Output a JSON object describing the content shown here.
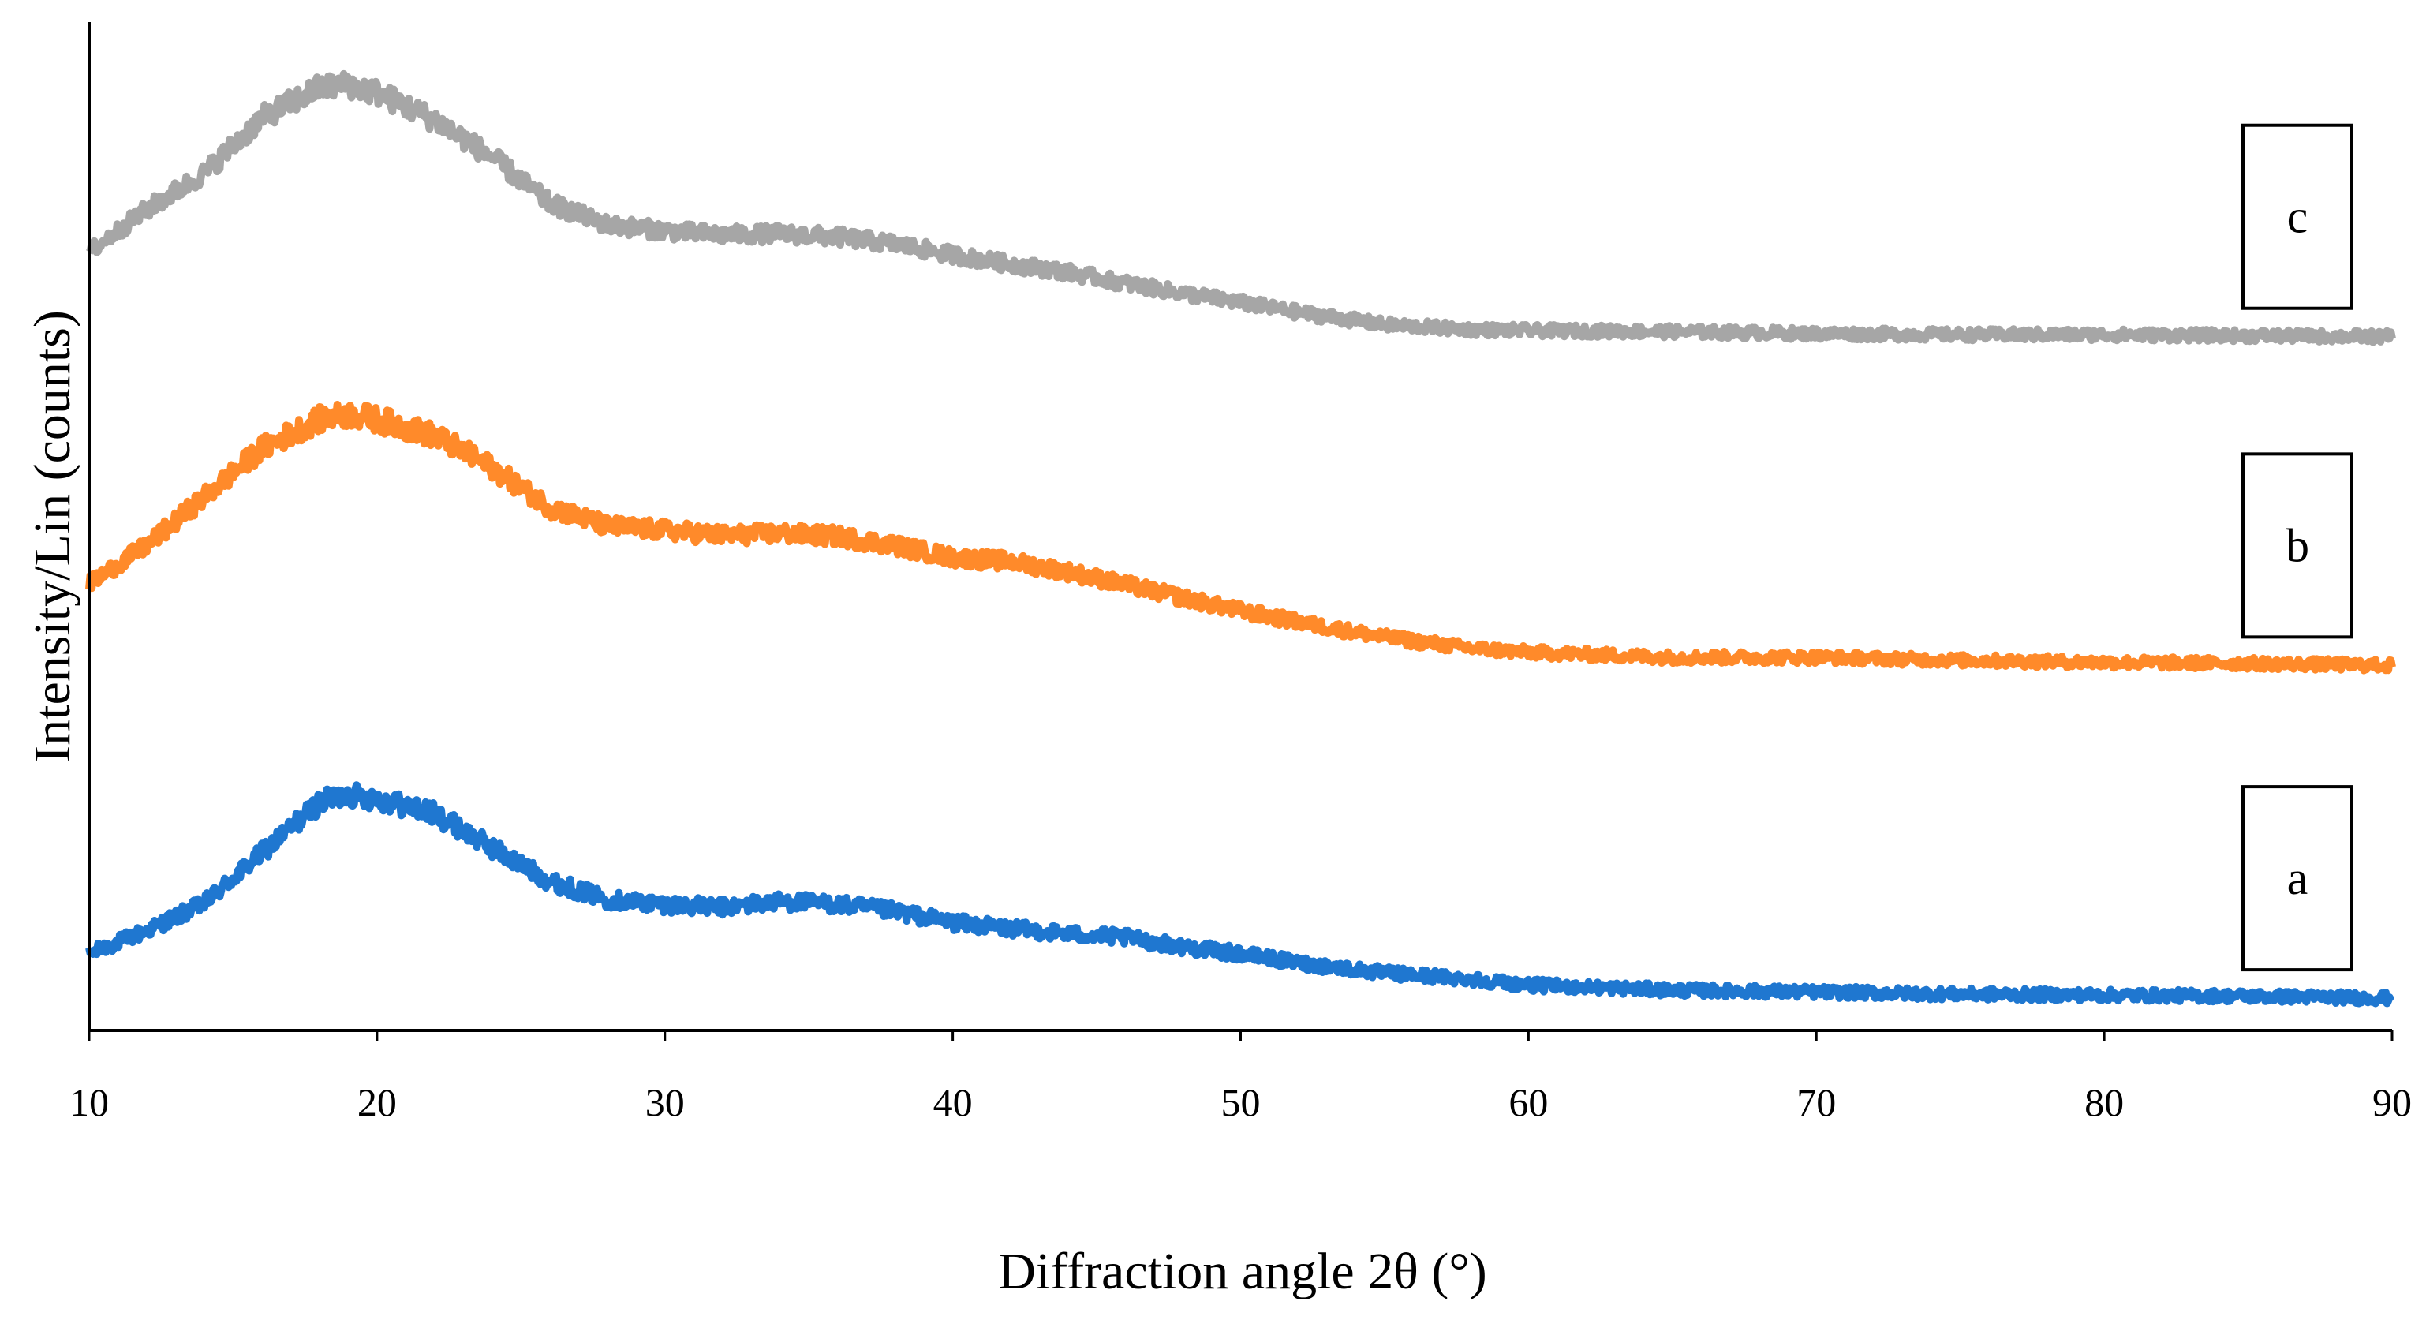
{
  "chart_data": {
    "type": "line",
    "title": "",
    "xlabel": "Diffraction angle 2θ (°)",
    "ylabel": "Intensity/Lin (counts)",
    "xlim": [
      10,
      90
    ],
    "xticks": [
      "10",
      "20",
      "30",
      "40",
      "50",
      "60",
      "70",
      "80",
      "90"
    ],
    "y_units": "arbitrary, traces vertically offset",
    "ylim": [
      0,
      100
    ],
    "grid": false,
    "series": [
      {
        "name": "a",
        "color": "#1f77d0",
        "x": [
          10,
          12,
          14,
          16,
          18,
          19,
          20,
          22,
          24,
          26,
          28,
          30,
          32,
          34,
          36,
          38,
          40,
          42,
          44,
          46,
          48,
          50,
          52,
          55,
          58,
          60,
          65,
          70,
          75,
          80,
          85,
          90
        ],
        "y": [
          7.6,
          9.9,
          12.6,
          17.6,
          22.6,
          23.4,
          23.0,
          21.5,
          18.1,
          14.8,
          13.0,
          12.5,
          12.2,
          12.8,
          12.5,
          11.8,
          10.7,
          10.1,
          9.6,
          9.2,
          8.3,
          7.6,
          6.7,
          5.7,
          5.1,
          4.5,
          4.0,
          3.8,
          3.6,
          3.5,
          3.4,
          3.2
        ]
      },
      {
        "name": "b",
        "color": "#ff8a2a",
        "x": [
          10,
          12,
          14,
          16,
          18,
          19,
          20,
          22,
          24,
          26,
          28,
          30,
          32,
          34,
          36,
          38,
          40,
          42,
          44,
          46,
          48,
          50,
          52,
          55,
          58,
          60,
          65,
          70,
          75,
          80,
          85,
          90
        ],
        "y": [
          44.3,
          48.1,
          52.9,
          57.7,
          60.6,
          61.1,
          60.6,
          59.0,
          55.8,
          51.9,
          50.0,
          49.6,
          49.1,
          49.3,
          49.0,
          48.1,
          46.9,
          46.5,
          45.5,
          44.2,
          42.9,
          41.6,
          40.5,
          39.0,
          37.9,
          37.5,
          37.0,
          37.0,
          36.7,
          36.5,
          36.4,
          36.2
        ]
      },
      {
        "name": "c",
        "color": "#a6a6a6",
        "x": [
          10,
          12,
          14,
          16,
          18,
          19,
          20,
          22,
          24,
          26,
          28,
          30,
          32,
          34,
          36,
          38,
          40,
          42,
          44,
          46,
          48,
          50,
          52,
          55,
          58,
          60,
          65,
          70,
          75,
          80,
          85,
          90
        ],
        "y": [
          77.2,
          81.4,
          85.0,
          90.5,
          93.5,
          93.8,
          93.0,
          90.3,
          86.6,
          82.0,
          79.9,
          79.3,
          78.9,
          79.0,
          78.7,
          78.0,
          76.9,
          76.0,
          75.2,
          74.1,
          73.1,
          72.2,
          71.2,
          70.0,
          69.5,
          69.4,
          69.3,
          69.1,
          69.0,
          69.0,
          68.9,
          68.8
        ]
      }
    ]
  }
}
